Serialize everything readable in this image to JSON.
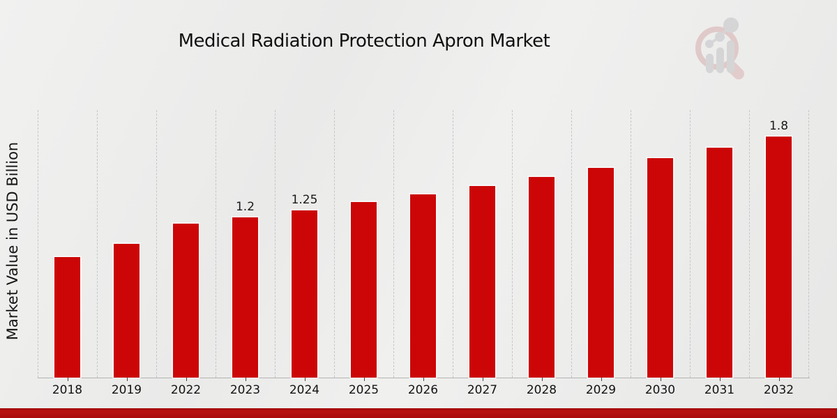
{
  "header": {
    "title": "Medical Radiation Protection Apron Market"
  },
  "chart_data": {
    "type": "bar",
    "title": "Medical Radiation Protection Apron Market",
    "categories": [
      "2018",
      "2019",
      "2022",
      "2023",
      "2024",
      "2025",
      "2026",
      "2027",
      "2028",
      "2029",
      "2030",
      "2031",
      "2032"
    ],
    "values": [
      0.9,
      1.0,
      1.15,
      1.2,
      1.25,
      1.31,
      1.37,
      1.43,
      1.5,
      1.57,
      1.64,
      1.72,
      1.8
    ],
    "data_labels": [
      "",
      "",
      "",
      "1.2",
      "1.25",
      "",
      "",
      "",
      "",
      "",
      "",
      "",
      "1.8"
    ],
    "xlabel": "",
    "ylabel": "Market Value in USD Billion",
    "ylim": [
      0,
      2
    ],
    "grid": "vertical-dashed",
    "legend_position": "none",
    "bar_color": "#cc0606",
    "gridline_color": "#c6c6c5",
    "axis_color": "#b3b3b2",
    "label_color": "#1a1a1a",
    "footer_accent_color": "#b00d0d",
    "logo_ring_color": "#d4a7a7",
    "logo_bar_color": "#bfbfc3"
  }
}
